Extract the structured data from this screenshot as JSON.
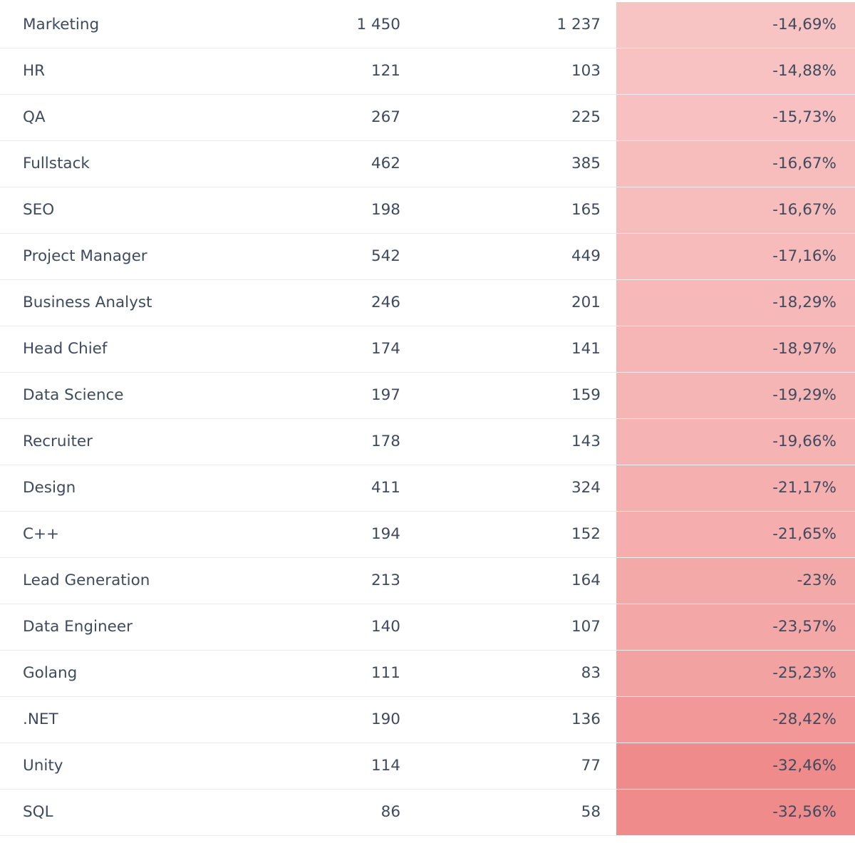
{
  "chart_data": {
    "type": "table",
    "rows": [
      {
        "name": "Marketing",
        "v1": "1 450",
        "v2": "1 237",
        "change": "-14,69%",
        "change_value": -14.69
      },
      {
        "name": "HR",
        "v1": "121",
        "v2": "103",
        "change": "-14,88%",
        "change_value": -14.88
      },
      {
        "name": "QA",
        "v1": "267",
        "v2": "225",
        "change": "-15,73%",
        "change_value": -15.73
      },
      {
        "name": "Fullstack",
        "v1": "462",
        "v2": "385",
        "change": "-16,67%",
        "change_value": -16.67
      },
      {
        "name": "SEO",
        "v1": "198",
        "v2": "165",
        "change": "-16,67%",
        "change_value": -16.67
      },
      {
        "name": "Project Manager",
        "v1": "542",
        "v2": "449",
        "change": "-17,16%",
        "change_value": -17.16
      },
      {
        "name": "Business Analyst",
        "v1": "246",
        "v2": "201",
        "change": "-18,29%",
        "change_value": -18.29
      },
      {
        "name": "Head Chief",
        "v1": "174",
        "v2": "141",
        "change": "-18,97%",
        "change_value": -18.97
      },
      {
        "name": "Data Science",
        "v1": "197",
        "v2": "159",
        "change": "-19,29%",
        "change_value": -19.29
      },
      {
        "name": "Recruiter",
        "v1": "178",
        "v2": "143",
        "change": "-19,66%",
        "change_value": -19.66
      },
      {
        "name": "Design",
        "v1": "411",
        "v2": "324",
        "change": "-21,17%",
        "change_value": -21.17
      },
      {
        "name": "C++",
        "v1": "194",
        "v2": "152",
        "change": "-21,65%",
        "change_value": -21.65
      },
      {
        "name": "Lead Generation",
        "v1": "213",
        "v2": "164",
        "change": "-23%",
        "change_value": -23
      },
      {
        "name": "Data Engineer",
        "v1": "140",
        "v2": "107",
        "change": "-23,57%",
        "change_value": -23.57
      },
      {
        "name": "Golang",
        "v1": "111",
        "v2": "83",
        "change": "-25,23%",
        "change_value": -25.23
      },
      {
        "name": ".NET",
        "v1": "190",
        "v2": "136",
        "change": "-28,42%",
        "change_value": -28.42
      },
      {
        "name": "Unity",
        "v1": "114",
        "v2": "77",
        "change": "-32,46%",
        "change_value": -32.46
      },
      {
        "name": "SQL",
        "v1": "86",
        "v2": "58",
        "change": "-32,56%",
        "change_value": -32.56
      }
    ],
    "heat_colors": {
      "light": "#f8c3c3",
      "dark": "#f08b8b"
    },
    "text_color": "#3f4a5e",
    "divider_color": "#ebecef"
  }
}
